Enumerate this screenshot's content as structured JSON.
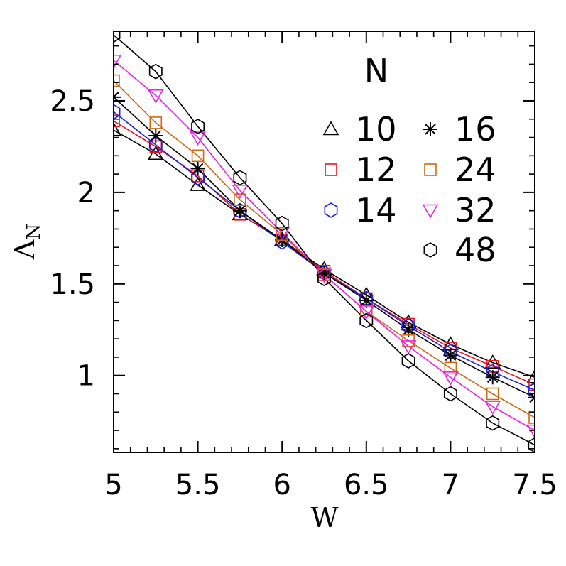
{
  "chart_data": {
    "type": "line",
    "xlabel": "W",
    "ylabel_main": "Λ",
    "ylabel_sub": "N",
    "xlim": [
      5,
      7.5
    ],
    "ylim": [
      0.58,
      2.88
    ],
    "xticks": [
      "5",
      "5.5",
      "6",
      "6.5",
      "7",
      "7.5"
    ],
    "yticks": [
      "1",
      "1.5",
      "2",
      "2.5"
    ],
    "x": [
      5,
      5.25,
      5.5,
      5.75,
      6,
      6.25,
      6.5,
      6.75,
      7,
      7.25,
      7.5
    ],
    "legend_title": "N",
    "series": [
      {
        "name": "10",
        "marker": "triangle-up",
        "color": "#000000",
        "values": [
          2.34,
          2.21,
          2.04,
          1.88,
          1.74,
          1.58,
          1.44,
          1.29,
          1.17,
          1.07,
          0.99
        ]
      },
      {
        "name": "12",
        "marker": "square",
        "color": "#e8141b",
        "values": [
          2.39,
          2.25,
          2.09,
          1.88,
          1.74,
          1.57,
          1.42,
          1.28,
          1.15,
          1.05,
          0.95
        ]
      },
      {
        "name": "14",
        "marker": "hexagon",
        "color": "#1a22d6",
        "values": [
          2.44,
          2.26,
          2.08,
          1.9,
          1.73,
          1.56,
          1.42,
          1.27,
          1.13,
          1.02,
          0.92
        ]
      },
      {
        "name": "16",
        "marker": "asterisk",
        "color": "#000000",
        "values": [
          2.52,
          2.31,
          2.13,
          1.9,
          1.74,
          1.56,
          1.41,
          1.25,
          1.11,
          0.99,
          0.88
        ]
      },
      {
        "name": "24",
        "marker": "square",
        "color": "#cc6a14",
        "values": [
          2.61,
          2.38,
          2.2,
          1.96,
          1.77,
          1.55,
          1.35,
          1.19,
          1.04,
          0.9,
          0.77
        ]
      },
      {
        "name": "32",
        "marker": "triangle-down",
        "color": "#ee1ee6",
        "values": [
          2.72,
          2.53,
          2.3,
          2.01,
          1.78,
          1.55,
          1.35,
          1.16,
          0.99,
          0.83,
          0.7
        ]
      },
      {
        "name": "48",
        "marker": "hexagon",
        "color": "#000000",
        "values": [
          2.86,
          2.66,
          2.36,
          2.08,
          1.83,
          1.53,
          1.3,
          1.08,
          0.9,
          0.74,
          0.62
        ]
      }
    ],
    "legend_placement": "top-right",
    "grid": false
  }
}
